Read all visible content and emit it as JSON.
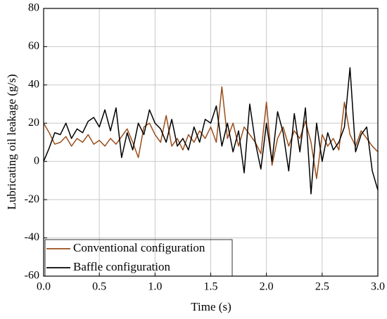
{
  "chart_data": {
    "type": "line",
    "x_label": "Time  (s)",
    "y_label": "Lubricating oil leakage  (g/s)",
    "x": [
      0,
      0.05,
      0.1,
      0.15,
      0.2,
      0.25,
      0.3,
      0.35,
      0.4,
      0.45,
      0.5,
      0.55,
      0.6,
      0.65,
      0.7,
      0.75,
      0.8,
      0.85,
      0.9,
      0.95,
      1,
      1.05,
      1.1,
      1.15,
      1.2,
      1.25,
      1.3,
      1.35,
      1.4,
      1.45,
      1.5,
      1.55,
      1.6,
      1.65,
      1.7,
      1.75,
      1.8,
      1.85,
      1.9,
      1.95,
      2,
      2.05,
      2.1,
      2.15,
      2.2,
      2.25,
      2.3,
      2.35,
      2.4,
      2.45,
      2.5,
      2.55,
      2.6,
      2.65,
      2.7,
      2.75,
      2.8,
      2.85,
      2.9,
      2.95,
      3
    ],
    "series": [
      {
        "name": "Conventional configuration",
        "color": "#9a4e1c",
        "values": [
          20,
          15,
          9,
          10,
          13,
          8,
          12,
          10,
          14,
          9,
          11,
          8,
          12,
          9,
          13,
          17,
          10,
          2,
          18,
          20,
          14,
          10,
          24,
          8,
          12,
          6,
          14,
          10,
          16,
          12,
          18,
          10,
          39,
          12,
          20,
          8,
          18,
          14,
          10,
          4,
          31,
          -2,
          12,
          18,
          8,
          16,
          12,
          21,
          10,
          -9,
          14,
          8,
          12,
          6,
          31,
          14,
          8,
          16,
          12,
          8,
          5
        ]
      },
      {
        "name": "Baffle configuration",
        "color": "#000000",
        "values": [
          0,
          7,
          15,
          14,
          20,
          12,
          17,
          15,
          21,
          23,
          18,
          27,
          16,
          28,
          2,
          15,
          6,
          20,
          14,
          27,
          20,
          17,
          10,
          22,
          8,
          12,
          6,
          18,
          10,
          22,
          20,
          29,
          8,
          20,
          5,
          16,
          -6,
          30,
          10,
          -4,
          20,
          0,
          26,
          15,
          -5,
          25,
          5,
          28,
          -17,
          20,
          0,
          15,
          6,
          10,
          18,
          49,
          5,
          14,
          18,
          -5,
          -15
        ]
      }
    ],
    "xlim": [
      0,
      3
    ],
    "xticks": [
      {
        "value": 0,
        "label": "0.0"
      },
      0.5,
      {
        "value": 1,
        "label": "1.0"
      },
      1.5,
      {
        "value": 2,
        "label": "2.0"
      },
      2.5,
      {
        "value": 3,
        "label": "3.0"
      }
    ],
    "ylim": [
      -60,
      80
    ],
    "yticks": [
      -60,
      -40,
      -20,
      0,
      20,
      40,
      60,
      80
    ],
    "grid": true,
    "legend": "lower left"
  }
}
